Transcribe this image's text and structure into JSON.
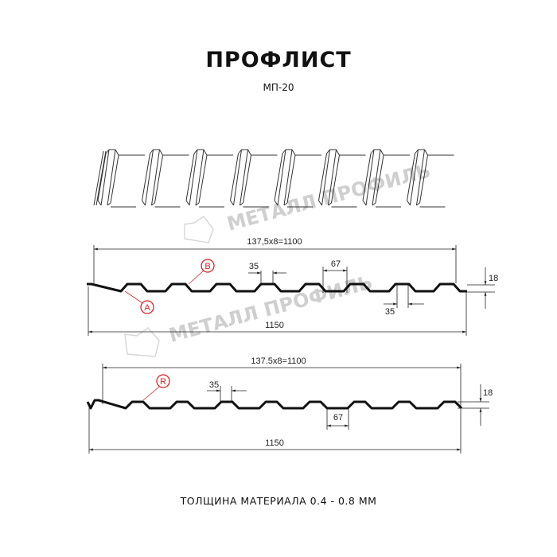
{
  "header": {
    "title": "ПРОФЛИСТ",
    "subtitle": "МП-20"
  },
  "watermark": {
    "text": "МЕТАЛЛ ПРОФИЛЬ"
  },
  "profile_top": {
    "pitch_label": "137,5x8=1100",
    "width_label": "1150",
    "crest_label": "35",
    "valley_label": "67",
    "bottom_crest_label": "35",
    "height_label": "18",
    "marker_a": "A",
    "marker_b": "B"
  },
  "profile_bottom": {
    "pitch_label": "137.5x8=1100",
    "width_label": "1150",
    "crest_label": "35",
    "valley_label": "67",
    "height_label": "18",
    "marker_r": "R"
  },
  "footer": {
    "thickness": "ТОЛЩИНА МАТЕРИАЛА 0.4 - 0.8 ММ"
  },
  "colors": {
    "line": "#111111",
    "marker": "#e02020",
    "watermark": "#cfcfcf"
  }
}
